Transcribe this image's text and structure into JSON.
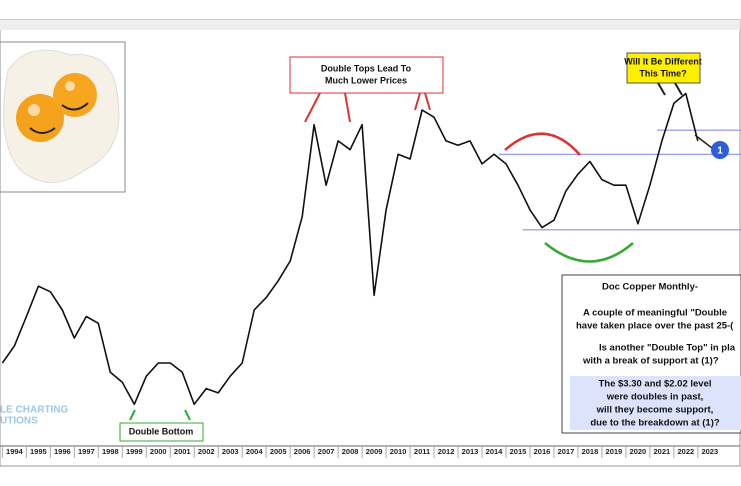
{
  "chart_data": {
    "type": "line",
    "log_scale": true,
    "color": "#111111",
    "x": [
      1993.5,
      1994.0,
      1994.5,
      1995.0,
      1995.5,
      1996.0,
      1996.5,
      1997.0,
      1997.5,
      1998.0,
      1998.5,
      1999.0,
      1999.5,
      2000.0,
      2000.5,
      2001.0,
      2001.5,
      2002.0,
      2002.5,
      2003.0,
      2003.5,
      2004.0,
      2004.5,
      2005.0,
      2005.5,
      2006.0,
      2006.5,
      2007.0,
      2007.5,
      2008.0,
      2008.5,
      2009.0,
      2009.5,
      2010.0,
      2010.5,
      2011.0,
      2011.5,
      2012.0,
      2012.5,
      2013.0,
      2013.5,
      2014.0,
      2014.5,
      2015.0,
      2015.5,
      2016.0,
      2016.5,
      2017.0,
      2017.5,
      2018.0,
      2018.5,
      2019.0,
      2019.5,
      2020.0,
      2020.5,
      2021.0,
      2021.5,
      2022.0,
      2022.5
    ],
    "values": [
      0.85,
      0.95,
      1.15,
      1.4,
      1.35,
      1.2,
      1.0,
      1.15,
      1.1,
      0.8,
      0.75,
      0.65,
      0.78,
      0.85,
      0.85,
      0.8,
      0.65,
      0.72,
      0.7,
      0.78,
      0.85,
      1.2,
      1.3,
      1.45,
      1.65,
      2.2,
      4.0,
      2.7,
      3.6,
      3.4,
      4.0,
      1.32,
      2.3,
      3.3,
      3.2,
      4.4,
      4.2,
      3.6,
      3.5,
      3.6,
      3.1,
      3.3,
      3.1,
      2.7,
      2.3,
      2.05,
      2.15,
      2.6,
      2.9,
      3.15,
      2.8,
      2.7,
      2.7,
      2.1,
      2.7,
      3.6,
      4.6,
      4.9,
      3.6
    ],
    "xlim": [
      1993.4,
      2024.3
    ],
    "xticks": [
      1994,
      1995,
      1996,
      1997,
      1998,
      1999,
      2000,
      2001,
      2002,
      2003,
      2004,
      2005,
      2006,
      2007,
      2008,
      2009,
      2010,
      2011,
      2012,
      2013,
      2014,
      2015,
      2016,
      2017,
      2018,
      2019,
      2020,
      2021,
      2022,
      2023
    ],
    "ylim": [
      0.55,
      5.5
    ],
    "levels": [
      3.86,
      3.3,
      2.02
    ],
    "annotations": {
      "double_tops": [
        "Double Tops Lead To",
        "Much Lower Prices"
      ],
      "different": [
        "Will It Be Different",
        "This Time?"
      ],
      "double_bottom": "Double Bottom",
      "marker": "1",
      "watermark": [
        "LE CHARTING",
        "UTIONS"
      ],
      "note": [
        "Doc Copper Monthly-",
        "A couple of meaningful \"Double",
        "have taken place over the past 25-(",
        "Is another \"Double Top\" in pla",
        "with a break of support at (1)?"
      ],
      "note_highlight": [
        "The $3.30 and $2.02 level",
        "were doubles in past,",
        "will they become support,",
        "due to the breakdown at (1)?"
      ]
    }
  }
}
